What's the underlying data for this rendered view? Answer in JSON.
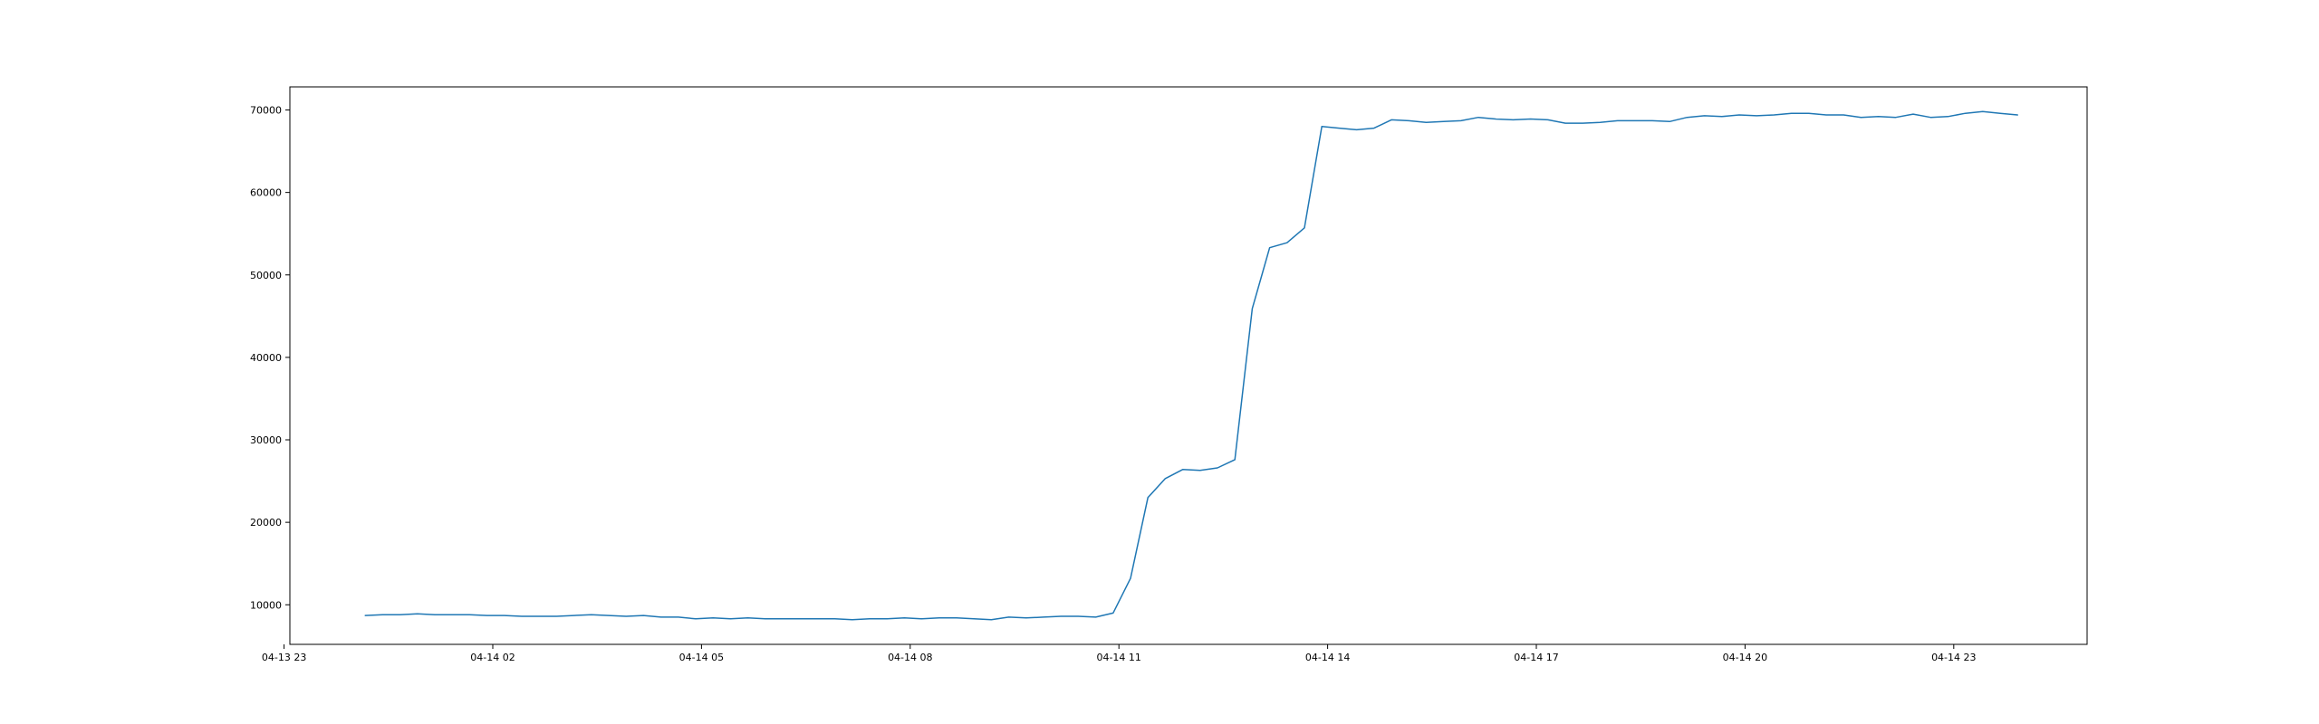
{
  "chart_data": {
    "type": "line",
    "title": "",
    "xlabel": "",
    "ylabel": "",
    "grid": false,
    "legend": false,
    "series_color": "#1f77b4",
    "xlim": [
      "2024-04-13 23:05",
      "2024-04-15 00:55"
    ],
    "ylim": [
      5200,
      72800
    ],
    "x_ticks": [
      {
        "value": "2024-04-13 23:00",
        "label": "04-13 23"
      },
      {
        "value": "2024-04-14 02:00",
        "label": "04-14 02"
      },
      {
        "value": "2024-04-14 05:00",
        "label": "04-14 05"
      },
      {
        "value": "2024-04-14 08:00",
        "label": "04-14 08"
      },
      {
        "value": "2024-04-14 11:00",
        "label": "04-14 11"
      },
      {
        "value": "2024-04-14 14:00",
        "label": "04-14 14"
      },
      {
        "value": "2024-04-14 17:00",
        "label": "04-14 17"
      },
      {
        "value": "2024-04-14 20:00",
        "label": "04-14 20"
      },
      {
        "value": "2024-04-14 23:00",
        "label": "04-14 23"
      }
    ],
    "y_ticks": [
      {
        "value": 10000,
        "label": "10000"
      },
      {
        "value": 20000,
        "label": "20000"
      },
      {
        "value": 30000,
        "label": "30000"
      },
      {
        "value": 40000,
        "label": "40000"
      },
      {
        "value": 50000,
        "label": "50000"
      },
      {
        "value": 60000,
        "label": "60000"
      },
      {
        "value": 70000,
        "label": "70000"
      }
    ],
    "series": [
      {
        "x": [
          "2024-04-14 00:10",
          "2024-04-14 00:25",
          "2024-04-14 00:40",
          "2024-04-14 00:55",
          "2024-04-14 01:10",
          "2024-04-14 01:25",
          "2024-04-14 01:40",
          "2024-04-14 01:55",
          "2024-04-14 02:10",
          "2024-04-14 02:25",
          "2024-04-14 02:40",
          "2024-04-14 02:55",
          "2024-04-14 03:10",
          "2024-04-14 03:25",
          "2024-04-14 03:40",
          "2024-04-14 03:55",
          "2024-04-14 04:10",
          "2024-04-14 04:25",
          "2024-04-14 04:40",
          "2024-04-14 04:55",
          "2024-04-14 05:10",
          "2024-04-14 05:25",
          "2024-04-14 05:40",
          "2024-04-14 05:55",
          "2024-04-14 06:10",
          "2024-04-14 06:25",
          "2024-04-14 06:40",
          "2024-04-14 06:55",
          "2024-04-14 07:10",
          "2024-04-14 07:25",
          "2024-04-14 07:40",
          "2024-04-14 07:55",
          "2024-04-14 08:10",
          "2024-04-14 08:25",
          "2024-04-14 08:40",
          "2024-04-14 08:55",
          "2024-04-14 09:10",
          "2024-04-14 09:25",
          "2024-04-14 09:40",
          "2024-04-14 09:55",
          "2024-04-14 10:10",
          "2024-04-14 10:25",
          "2024-04-14 10:40",
          "2024-04-14 10:55",
          "2024-04-14 11:10",
          "2024-04-14 11:25",
          "2024-04-14 11:40",
          "2024-04-14 11:55",
          "2024-04-14 12:10",
          "2024-04-14 12:25",
          "2024-04-14 12:40",
          "2024-04-14 12:55",
          "2024-04-14 13:10",
          "2024-04-14 13:25",
          "2024-04-14 13:40",
          "2024-04-14 13:55",
          "2024-04-14 14:10",
          "2024-04-14 14:25",
          "2024-04-14 14:40",
          "2024-04-14 14:55",
          "2024-04-14 15:10",
          "2024-04-14 15:25",
          "2024-04-14 15:40",
          "2024-04-14 15:55",
          "2024-04-14 16:10",
          "2024-04-14 16:25",
          "2024-04-14 16:40",
          "2024-04-14 16:55",
          "2024-04-14 17:10",
          "2024-04-14 17:25",
          "2024-04-14 17:40",
          "2024-04-14 17:55",
          "2024-04-14 18:10",
          "2024-04-14 18:25",
          "2024-04-14 18:40",
          "2024-04-14 18:55",
          "2024-04-14 19:10",
          "2024-04-14 19:25",
          "2024-04-14 19:40",
          "2024-04-14 19:55",
          "2024-04-14 20:10",
          "2024-04-14 20:25",
          "2024-04-14 20:40",
          "2024-04-14 20:55",
          "2024-04-14 21:10",
          "2024-04-14 21:25",
          "2024-04-14 21:40",
          "2024-04-14 21:55",
          "2024-04-14 22:10",
          "2024-04-14 22:25",
          "2024-04-14 22:40",
          "2024-04-14 22:55",
          "2024-04-14 23:10",
          "2024-04-14 23:25",
          "2024-04-14 23:40",
          "2024-04-14 23:55"
        ],
        "y": [
          8700,
          8800,
          8800,
          8900,
          8800,
          8800,
          8800,
          8700,
          8700,
          8600,
          8600,
          8600,
          8700,
          8800,
          8700,
          8600,
          8700,
          8500,
          8500,
          8300,
          8400,
          8300,
          8400,
          8300,
          8300,
          8300,
          8300,
          8300,
          8200,
          8300,
          8300,
          8400,
          8300,
          8400,
          8400,
          8300,
          8200,
          8500,
          8400,
          8500,
          8600,
          8600,
          8500,
          9000,
          13200,
          23000,
          25300,
          26400,
          26300,
          26600,
          27600,
          45900,
          53300,
          53900,
          55700,
          68000,
          67800,
          67600,
          67800,
          68800,
          68700,
          68500,
          68600,
          68700,
          69100,
          68900,
          68800,
          68900,
          68800,
          68400,
          68400,
          68500,
          68700,
          68700,
          68700,
          68600,
          69100,
          69300,
          69200,
          69400,
          69300,
          69400,
          69600,
          69600,
          69400,
          69400,
          69100,
          69200,
          69100,
          69500,
          69100,
          69200,
          69600,
          69800,
          69600,
          69400
        ]
      }
    ]
  }
}
